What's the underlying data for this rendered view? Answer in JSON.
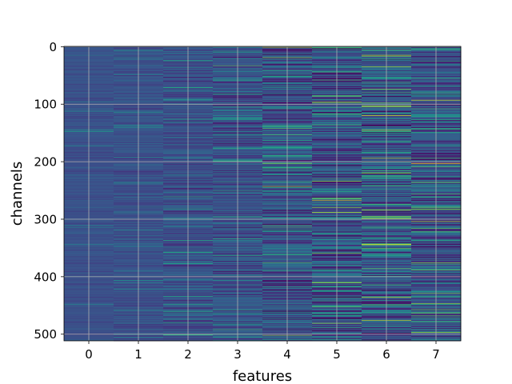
{
  "chart_data": {
    "type": "heatmap",
    "title": "",
    "xlabel": "features",
    "ylabel": "channels",
    "columns": [
      0,
      1,
      2,
      3,
      4,
      5,
      6,
      7
    ],
    "x_ticks": [
      "0",
      "1",
      "2",
      "3",
      "4",
      "5",
      "6",
      "7"
    ],
    "y_ticks": [
      "0",
      "100",
      "200",
      "300",
      "400",
      "500"
    ],
    "y_tick_values": [
      0,
      100,
      200,
      300,
      400,
      500
    ],
    "xlim": [
      -0.5,
      7.5
    ],
    "ylim": [
      511.5,
      -0.5
    ],
    "rows": 512,
    "grid": true,
    "colormap": "viridis",
    "background_color": "#3b528b",
    "column_variability": [
      0.06,
      0.1,
      0.16,
      0.22,
      0.3,
      0.34,
      0.32,
      0.3
    ],
    "highlights": [
      {
        "column": 4,
        "row": 142,
        "value": 0.72
      },
      {
        "column": 4,
        "row": 108,
        "value": 0.62
      },
      {
        "column": 4,
        "row": 235,
        "value": 0.66
      },
      {
        "column": 4,
        "row": 376,
        "value": 0.7
      },
      {
        "column": 5,
        "row": 264,
        "value": 0.82
      },
      {
        "column": 5,
        "row": 280,
        "value": 0.8
      },
      {
        "column": 5,
        "row": 44,
        "value": 0.68
      },
      {
        "column": 6,
        "row": 103,
        "value": 0.96
      },
      {
        "column": 6,
        "row": 145,
        "value": 0.85
      },
      {
        "column": 6,
        "row": 344,
        "value": 0.92
      },
      {
        "column": 6,
        "row": 436,
        "value": 0.9
      },
      {
        "column": 6,
        "row": 476,
        "value": 0.88
      },
      {
        "column": 6,
        "row": 74,
        "value": 0.8
      },
      {
        "column": 7,
        "row": 93,
        "value": 0.92
      },
      {
        "column": 7,
        "row": 256,
        "value": 0.7
      },
      {
        "column": 7,
        "row": 378,
        "value": 0.66
      },
      {
        "column": 7,
        "row": 478,
        "value": 0.68
      }
    ]
  }
}
